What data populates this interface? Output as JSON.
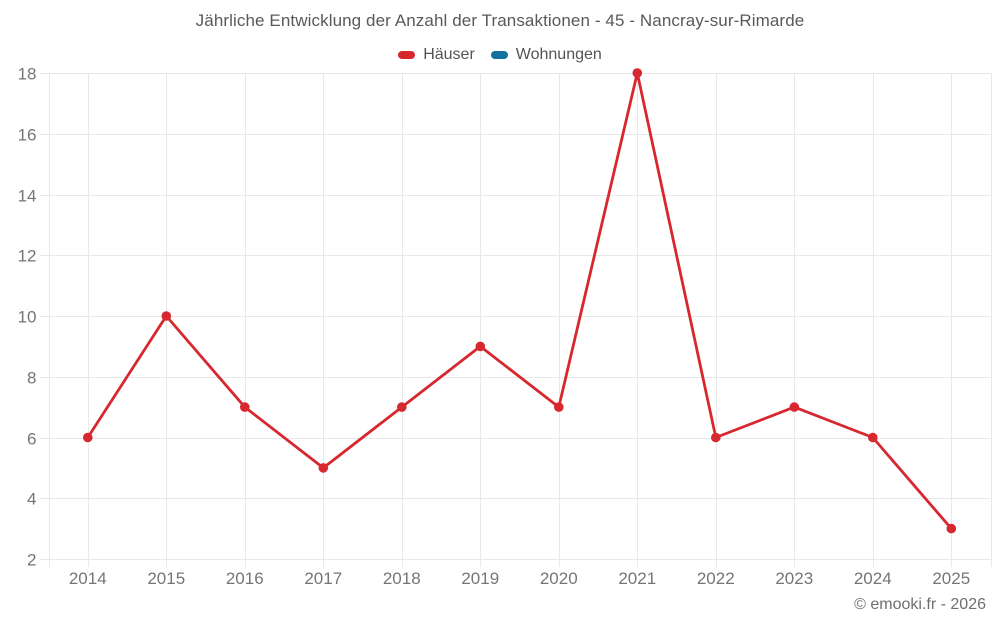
{
  "header": {
    "title": "Jährliche Entwicklung der Anzahl der Transaktionen - 45 - Nancray-sur-Rimarde"
  },
  "legend": {
    "items": [
      {
        "label": "Häuser",
        "color": "#d7282f"
      },
      {
        "label": "Wohnungen",
        "color": "#14709e"
      }
    ]
  },
  "footer": {
    "copyright": "© emooki.fr - 2026"
  },
  "chart_data": {
    "type": "line",
    "title": "Jährliche Entwicklung der Anzahl der Transaktionen - 45 - Nancray-sur-Rimarde",
    "categories": [
      "2014",
      "2015",
      "2016",
      "2017",
      "2018",
      "2019",
      "2020",
      "2021",
      "2022",
      "2023",
      "2024",
      "2025"
    ],
    "series": [
      {
        "name": "Häuser",
        "color": "#d7282f",
        "values": [
          6,
          10,
          7,
          5,
          7,
          9,
          7,
          18,
          6,
          7,
          6,
          3
        ]
      },
      {
        "name": "Wohnungen",
        "color": "#14709e",
        "values": []
      }
    ],
    "xlabel": "",
    "ylabel": "",
    "ylim": [
      2,
      18
    ],
    "ytick_step": 2,
    "grid": true,
    "legend_position": "top",
    "colors": {
      "grid": "#e8e8e8",
      "axis_text": "#757575",
      "title_text": "#595959"
    }
  }
}
